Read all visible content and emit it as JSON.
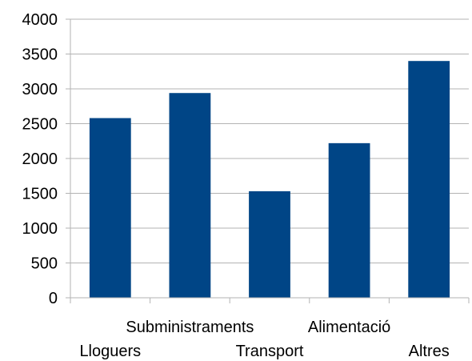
{
  "chart_data": {
    "type": "bar",
    "categories": [
      "Lloguers",
      "Subministraments",
      "Transport",
      "Alimentació",
      "Altres"
    ],
    "values": [
      2580,
      2940,
      1530,
      2220,
      3400
    ],
    "yticks": [
      "0",
      "500",
      "1000",
      "1500",
      "2000",
      "2500",
      "3000",
      "3500",
      "4000"
    ],
    "ylim": [
      0,
      4000
    ],
    "grid": true,
    "legend": "none",
    "bar_color": "#004586",
    "grid_color": "#b3b3b3",
    "title": "",
    "xlabel": "",
    "ylabel": ""
  }
}
